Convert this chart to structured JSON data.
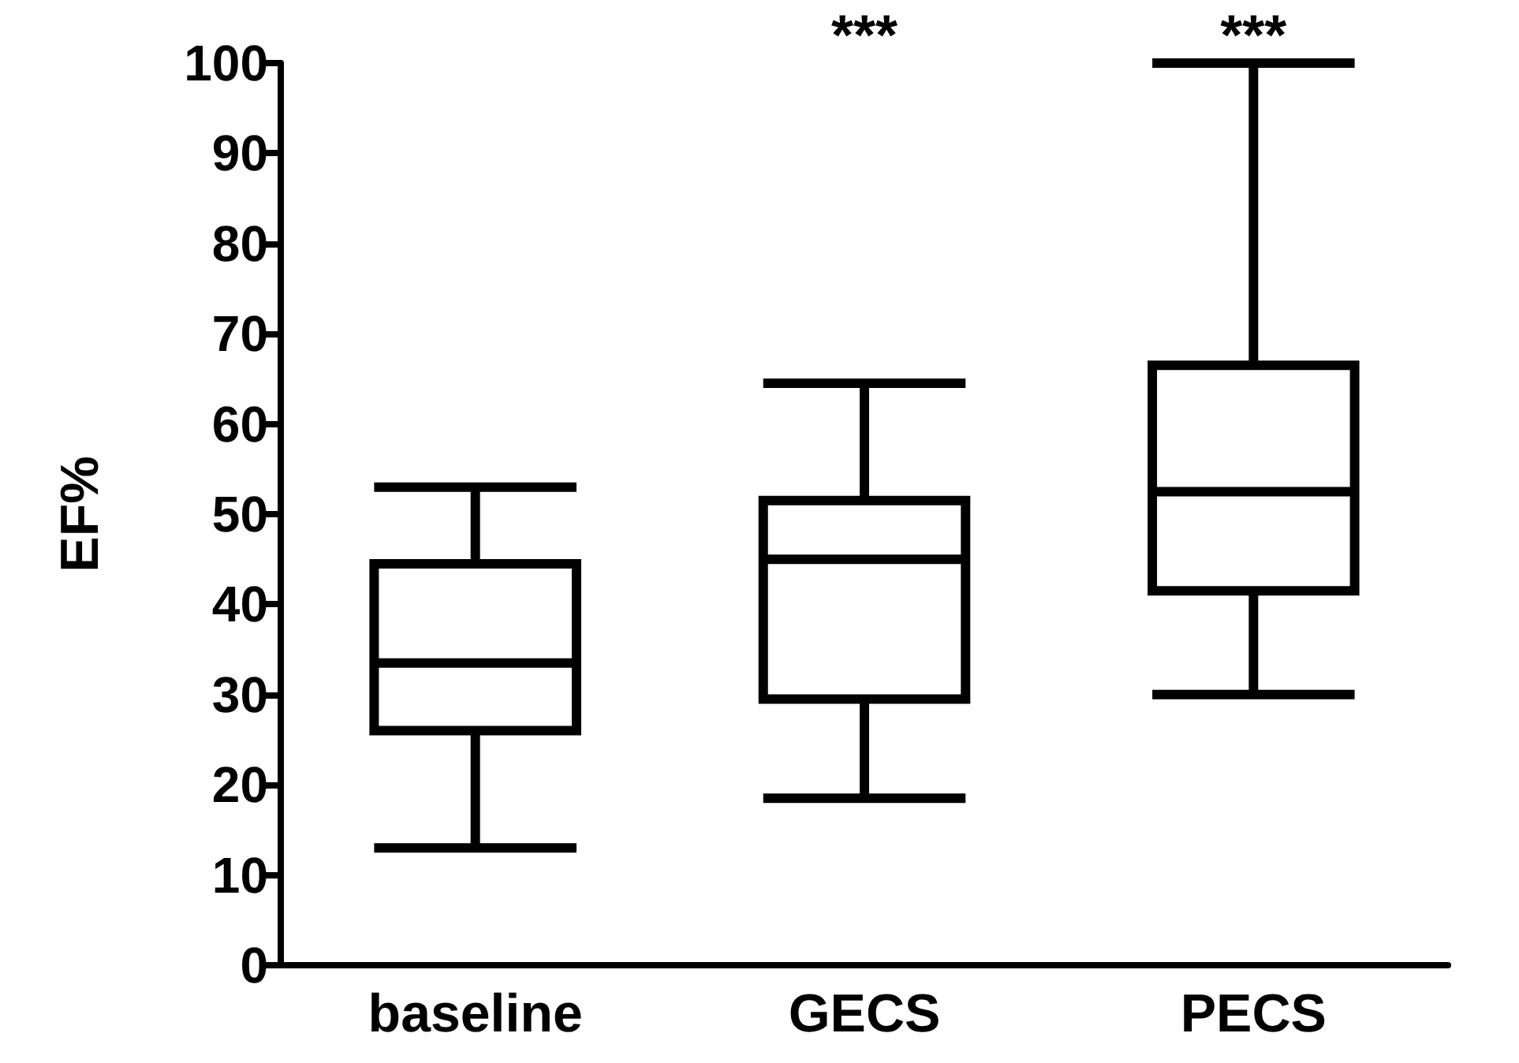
{
  "chart_data": {
    "type": "box",
    "ylabel": "EF%",
    "categories": [
      "baseline",
      "GECS",
      "PECS"
    ],
    "boxes": [
      {
        "low": 13,
        "q1": 26,
        "median": 33.5,
        "q3": 44.5,
        "high": 53
      },
      {
        "low": 18.5,
        "q1": 29.5,
        "median": 45,
        "q3": 51.5,
        "high": 64.5
      },
      {
        "low": 30,
        "q1": 41.5,
        "median": 52.5,
        "q3": 66.5,
        "high": 100
      }
    ],
    "color": "#000000",
    "ylim": [
      0,
      100
    ],
    "yticks": [
      0,
      10,
      20,
      30,
      40,
      50,
      60,
      70,
      80,
      90,
      100
    ],
    "grid": false,
    "annotations": [
      "***",
      "***"
    ]
  }
}
